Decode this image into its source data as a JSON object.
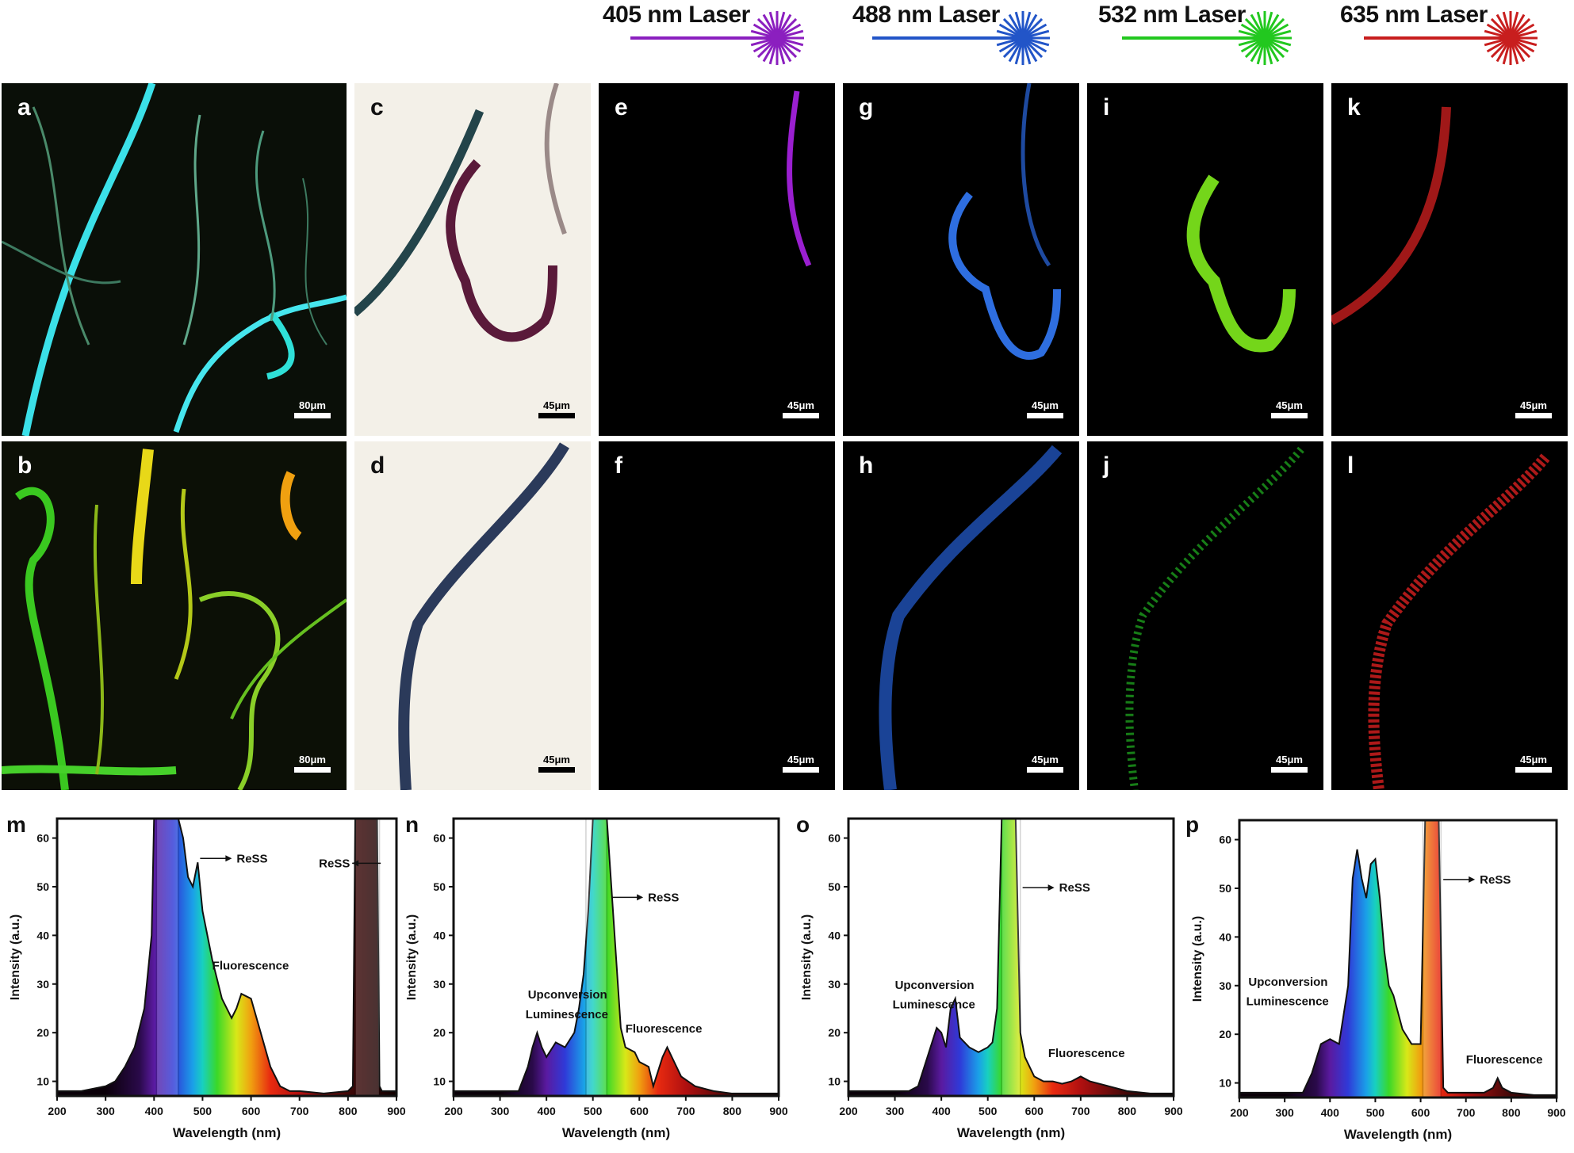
{
  "lasers": [
    {
      "label": "405 nm Laser",
      "color": "#8b1fbf"
    },
    {
      "label": "488 nm Laser",
      "color": "#2255c8"
    },
    {
      "label": "532 nm Laser",
      "color": "#22c81f"
    },
    {
      "label": "635 nm Laser",
      "color": "#c81e1e"
    }
  ],
  "panels": [
    {
      "letter": "a",
      "scale": "80μm"
    },
    {
      "letter": "b",
      "scale": "80μm"
    },
    {
      "letter": "c",
      "scale": "45μm"
    },
    {
      "letter": "d",
      "scale": "45μm"
    },
    {
      "letter": "e",
      "scale": "45μm"
    },
    {
      "letter": "f",
      "scale": "45μm"
    },
    {
      "letter": "g",
      "scale": "45μm"
    },
    {
      "letter": "h",
      "scale": "45μm"
    },
    {
      "letter": "i",
      "scale": "45μm"
    },
    {
      "letter": "j",
      "scale": "45μm"
    },
    {
      "letter": "k",
      "scale": "45μm"
    },
    {
      "letter": "l",
      "scale": "45μm"
    }
  ],
  "chart_data": [
    {
      "letter": "m",
      "type": "area",
      "xlabel": "Wavelength (nm)",
      "ylabel": "Intensity (a.u.)",
      "xlim": [
        200,
        900
      ],
      "ylim": [
        7,
        64
      ],
      "xticks": [
        200,
        300,
        400,
        500,
        600,
        700,
        800,
        900
      ],
      "yticks": [
        10,
        20,
        30,
        40,
        50,
        60
      ],
      "series": [
        {
          "x": [
            200,
            250,
            300,
            320,
            340,
            360,
            380,
            395,
            400,
            410,
            430,
            450,
            460,
            470,
            480,
            490,
            500,
            510,
            520,
            540,
            560,
            570,
            580,
            600,
            620,
            640,
            660,
            680,
            700,
            750,
            800,
            810,
            815,
            820,
            860,
            865,
            870,
            900
          ],
          "y": [
            8,
            8,
            9,
            10,
            13,
            17,
            25,
            40,
            64,
            64,
            64,
            64,
            60,
            52,
            50,
            55,
            45,
            40,
            35,
            27,
            23,
            25,
            28,
            27,
            20,
            13,
            9,
            8,
            8,
            7.5,
            8,
            9,
            64,
            64,
            64,
            9,
            8,
            8
          ]
        }
      ],
      "ress_bands": [
        [
          405,
          450
        ],
        [
          815,
          865
        ]
      ],
      "annotations": [
        {
          "text": "ReSS",
          "x": 495,
          "y": 55,
          "arrow": "right"
        },
        {
          "text": "ReSS",
          "x": 740,
          "y": 54,
          "arrow": "left"
        },
        {
          "text": "Fluorescence",
          "x": 520,
          "y": 33,
          "arrow": "none"
        }
      ]
    },
    {
      "letter": "n",
      "type": "area",
      "xlabel": "Wavelength (nm)",
      "ylabel": "Intensity (a.u.)",
      "xlim": [
        200,
        900
      ],
      "ylim": [
        7,
        64
      ],
      "xticks": [
        200,
        300,
        400,
        500,
        600,
        700,
        800,
        900
      ],
      "yticks": [
        10,
        20,
        30,
        40,
        50,
        60
      ],
      "series": [
        {
          "x": [
            200,
            250,
            300,
            340,
            360,
            370,
            380,
            390,
            400,
            420,
            440,
            460,
            470,
            480,
            490,
            500,
            520,
            530,
            560,
            570,
            590,
            600,
            620,
            630,
            650,
            660,
            670,
            690,
            720,
            760,
            800,
            850,
            900
          ],
          "y": [
            8,
            8,
            8,
            8,
            13,
            17,
            20,
            17,
            15,
            18,
            17,
            20,
            25,
            32,
            45,
            64,
            64,
            64,
            21,
            17,
            16,
            14,
            13,
            9,
            15,
            17,
            15,
            11,
            9,
            8,
            7.5,
            7.5,
            7.5
          ]
        }
      ],
      "ress_bands": [
        [
          485,
          530
        ]
      ],
      "annotations": [
        {
          "text": "ReSS",
          "x": 540,
          "y": 47,
          "arrow": "right"
        },
        {
          "text": "Upconversion",
          "x": 360,
          "y": 27,
          "arrow": "none"
        },
        {
          "text": "Luminescence",
          "x": 355,
          "y": 23,
          "arrow": "none"
        },
        {
          "text": "Fluorescence",
          "x": 570,
          "y": 20,
          "arrow": "none"
        }
      ]
    },
    {
      "letter": "o",
      "type": "area",
      "xlabel": "Wavelength (nm)",
      "ylabel": "Intensity (a.u.)",
      "xlim": [
        200,
        900
      ],
      "ylim": [
        7,
        64
      ],
      "xticks": [
        200,
        300,
        400,
        500,
        600,
        700,
        800,
        900
      ],
      "yticks": [
        10,
        20,
        30,
        40,
        50,
        60
      ],
      "series": [
        {
          "x": [
            200,
            250,
            300,
            330,
            350,
            370,
            390,
            400,
            410,
            420,
            430,
            440,
            460,
            480,
            500,
            510,
            520,
            530,
            545,
            560,
            570,
            580,
            600,
            620,
            640,
            660,
            680,
            700,
            720,
            760,
            800,
            850,
            900
          ],
          "y": [
            8,
            8,
            8,
            8,
            9,
            15,
            21,
            20,
            17,
            25,
            27,
            19,
            17,
            16,
            17,
            18,
            25,
            64,
            64,
            64,
            20,
            15,
            11,
            10,
            10,
            9.5,
            10,
            11,
            10,
            9,
            8,
            7.5,
            7.5
          ]
        }
      ],
      "ress_bands": [
        [
          530,
          570
        ]
      ],
      "annotations": [
        {
          "text": "ReSS",
          "x": 575,
          "y": 49,
          "arrow": "right"
        },
        {
          "text": "Upconversion",
          "x": 300,
          "y": 29,
          "arrow": "none"
        },
        {
          "text": "Luminescence",
          "x": 295,
          "y": 25,
          "arrow": "none"
        },
        {
          "text": "Fluorescence",
          "x": 630,
          "y": 15,
          "arrow": "none"
        }
      ]
    },
    {
      "letter": "p",
      "type": "area",
      "xlabel": "Wavelength (nm)",
      "ylabel": "Intensity (a.u.)",
      "xlim": [
        200,
        900
      ],
      "ylim": [
        7,
        64
      ],
      "xticks": [
        200,
        300,
        400,
        500,
        600,
        700,
        800,
        900
      ],
      "yticks": [
        10,
        20,
        30,
        40,
        50,
        60
      ],
      "series": [
        {
          "x": [
            200,
            250,
            300,
            340,
            360,
            370,
            380,
            400,
            420,
            440,
            450,
            460,
            470,
            480,
            490,
            500,
            510,
            520,
            530,
            540,
            560,
            580,
            590,
            600,
            610,
            640,
            650,
            660,
            700,
            740,
            760,
            770,
            780,
            800,
            850,
            900
          ],
          "y": [
            8,
            8,
            8,
            8,
            12,
            15,
            18,
            19,
            18,
            30,
            52,
            58,
            52,
            48,
            55,
            56,
            48,
            37,
            30,
            28,
            21,
            18,
            18,
            18,
            64,
            64,
            9,
            8,
            8,
            8,
            9,
            11,
            9,
            8,
            7.5,
            7.5
          ]
        }
      ],
      "ress_bands": [
        [
          605,
          645
        ]
      ],
      "annotations": [
        {
          "text": "ReSS",
          "x": 650,
          "y": 51,
          "arrow": "right"
        },
        {
          "text": "Upconversion",
          "x": 220,
          "y": 30,
          "arrow": "none"
        },
        {
          "text": "Luminescence",
          "x": 215,
          "y": 26,
          "arrow": "none"
        },
        {
          "text": "Fluorescence",
          "x": 700,
          "y": 14,
          "arrow": "none"
        }
      ]
    }
  ]
}
